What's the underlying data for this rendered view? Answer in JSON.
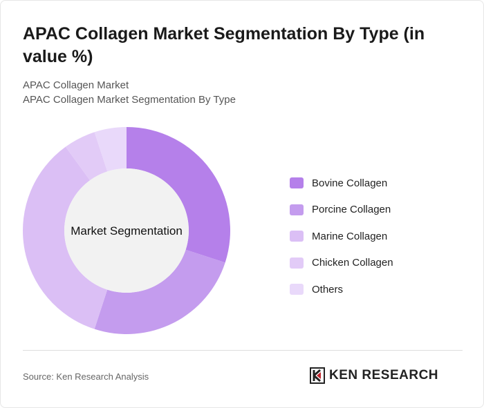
{
  "header": {
    "title": "APAC Collagen Market Segmentation By Type (in value %)",
    "subtitle1": "APAC Collagen Market",
    "subtitle2": "APAC Collagen Market Segmentation By Type"
  },
  "chart_data": {
    "type": "pie",
    "variant": "donut",
    "center_label": "Market Segmentation",
    "categories": [
      "Bovine Collagen",
      "Porcine Collagen",
      "Marine Collagen",
      "Chicken Collagen",
      "Others"
    ],
    "values": [
      30,
      25,
      35,
      5,
      5
    ],
    "colors": [
      "#b580ea",
      "#c49cee",
      "#dbbff5",
      "#e2cbf7",
      "#e9d9fa"
    ],
    "legend_position": "right"
  },
  "footer": {
    "source": "Source: Ken Research Analysis",
    "logo_text": "KEN RESEARCH"
  }
}
